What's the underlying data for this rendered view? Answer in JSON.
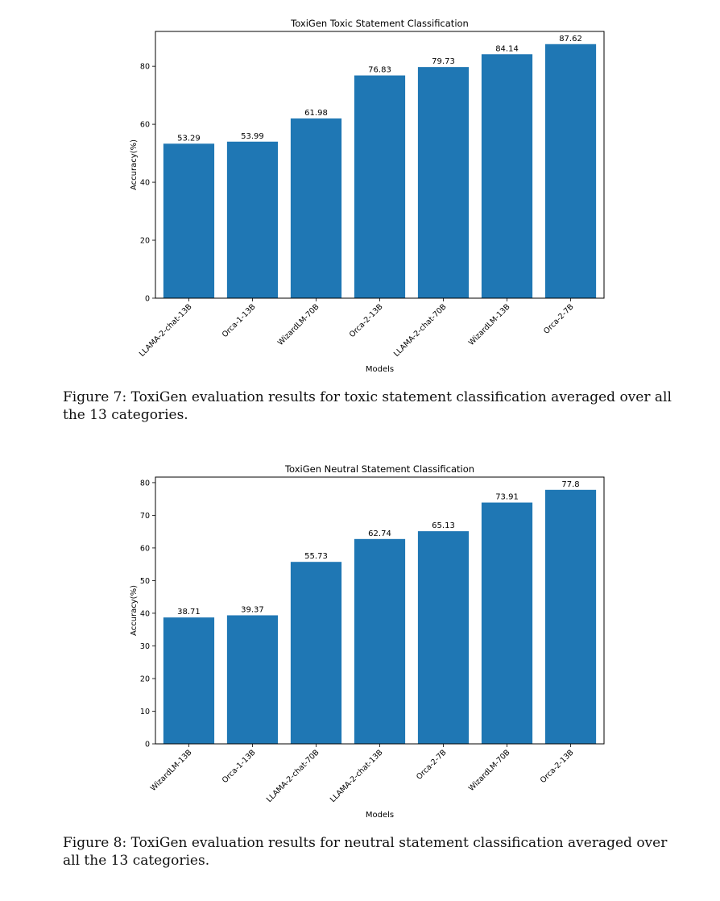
{
  "chart_data": [
    {
      "type": "bar",
      "title": "ToxiGen Toxic Statement Classification",
      "xlabel": "Models",
      "ylabel": "Accuracy(%)",
      "categories": [
        "LLAMA-2-chat-13B",
        "Orca-1-13B",
        "WizardLM-70B",
        "Orca-2-13B",
        "LLAMA-2-chat-70B",
        "WizardLM-13B",
        "Orca-2-7B"
      ],
      "values": [
        53.29,
        53.99,
        61.98,
        76.83,
        79.73,
        84.14,
        87.62
      ],
      "value_labels": [
        "53.29",
        "53.99",
        "61.98",
        "76.83",
        "79.73",
        "84.14",
        "87.62"
      ],
      "ylim": [
        0,
        92
      ],
      "yticks": [
        0,
        20,
        40,
        60,
        80
      ],
      "ytick_labels": [
        "0",
        "20",
        "40",
        "60",
        "80"
      ],
      "bar_color": "#1f77b4",
      "grid": false,
      "legend": false
    },
    {
      "type": "bar",
      "title": "ToxiGen Neutral Statement Classification",
      "xlabel": "Models",
      "ylabel": "Accuracy(%)",
      "categories": [
        "WizardLM-13B",
        "Orca-1-13B",
        "LLAMA-2-chat-70B",
        "LLAMA-2-chat-13B",
        "Orca-2-7B",
        "WizardLM-70B",
        "Orca-2-13B"
      ],
      "values": [
        38.71,
        39.37,
        55.73,
        62.74,
        65.13,
        73.91,
        77.8
      ],
      "value_labels": [
        "38.71",
        "39.37",
        "55.73",
        "62.74",
        "65.13",
        "73.91",
        "77.8"
      ],
      "ylim": [
        0,
        81.7
      ],
      "yticks": [
        0,
        10,
        20,
        30,
        40,
        50,
        60,
        70,
        80
      ],
      "ytick_labels": [
        "0",
        "10",
        "20",
        "30",
        "40",
        "50",
        "60",
        "70",
        "80"
      ],
      "bar_color": "#1f77b4",
      "grid": false,
      "legend": false
    }
  ],
  "captions": [
    "Figure 7: ToxiGen evaluation results for toxic statement classification averaged over all the 13 categories.",
    "Figure 8: ToxiGen evaluation results for neutral statement classification averaged over all the 13 categories."
  ]
}
